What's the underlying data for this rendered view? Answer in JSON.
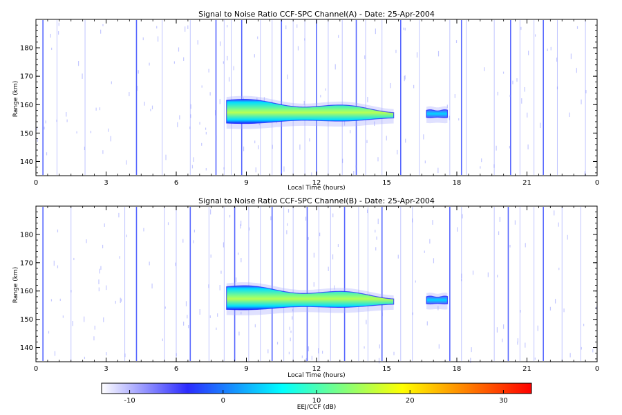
{
  "chart_data": [
    {
      "type": "heatmap",
      "title": "Signal to Noise Ratio CCF-SPC Channel(A) - Date: 25-Apr-2004",
      "xlabel": "Local Time (hours)",
      "ylabel": "Range (km)",
      "xlim": [
        0,
        24
      ],
      "ylim": [
        135,
        190
      ],
      "x_ticks": [
        "0",
        "3",
        "6",
        "9",
        "12",
        "15",
        "18",
        "21",
        "0"
      ],
      "y_ticks": [
        "140",
        "150",
        "160",
        "170",
        "180"
      ],
      "echo_regions": [
        {
          "t_start": 8.15,
          "t_end": 15.3,
          "range_bottom_start": 153.5,
          "range_top_start": 161.5,
          "range_bottom_end": 155.0,
          "range_top_end": 158.0,
          "peak_snr_db": 12
        },
        {
          "t_start": 16.7,
          "t_end": 17.6,
          "range_bottom_start": 155.5,
          "range_top_start": 158.0,
          "range_bottom_end": 155.5,
          "range_top_end": 158.0,
          "peak_snr_db": 2
        }
      ],
      "interference_times": [
        0.3,
        0.9,
        2.1,
        4.3,
        5.4,
        6.6,
        7.7,
        8.05,
        8.35,
        8.8,
        9.6,
        10.1,
        10.5,
        11.0,
        11.5,
        12.0,
        12.5,
        13.1,
        13.7,
        14.1,
        14.8,
        15.6,
        16.4,
        17.7,
        18.2,
        18.4,
        19.6,
        20.3,
        20.7,
        21.3,
        21.7,
        22.3,
        23.5
      ]
    },
    {
      "type": "heatmap",
      "title": "Signal to Noise Ratio CCF-SPC Channel(B) - Date: 25-Apr-2004",
      "xlabel": "Local Time (hours)",
      "ylabel": "Range (km)",
      "xlim": [
        0,
        24
      ],
      "ylim": [
        135,
        190
      ],
      "x_ticks": [
        "0",
        "3",
        "6",
        "9",
        "12",
        "15",
        "18",
        "21",
        "0"
      ],
      "y_ticks": [
        "140",
        "150",
        "160",
        "170",
        "180"
      ],
      "echo_regions": [
        {
          "t_start": 8.15,
          "t_end": 15.3,
          "range_bottom_start": 153.5,
          "range_top_start": 161.5,
          "range_bottom_end": 155.0,
          "range_top_end": 158.0,
          "peak_snr_db": 12
        },
        {
          "t_start": 16.7,
          "t_end": 17.6,
          "range_bottom_start": 155.5,
          "range_top_start": 158.0,
          "range_bottom_end": 155.5,
          "range_top_end": 158.0,
          "peak_snr_db": 2
        }
      ],
      "interference_times": [
        0.3,
        1.5,
        3.8,
        4.3,
        5.5,
        6.0,
        6.6,
        7.4,
        8.05,
        8.5,
        9.1,
        9.6,
        10.1,
        10.6,
        11.0,
        11.6,
        12.1,
        12.6,
        13.2,
        13.8,
        14.2,
        14.8,
        15.6,
        16.1,
        17.7,
        18.2,
        19.6,
        20.2,
        20.7,
        21.3,
        21.7,
        22.5,
        23.3
      ]
    }
  ],
  "colorbar": {
    "label": "EEJ/CCF (dB)",
    "ticks": [
      "-10",
      "0",
      "10",
      "20",
      "30"
    ],
    "tick_values": [
      -10,
      0,
      10,
      20,
      30
    ],
    "range": [
      -13,
      33
    ],
    "colors": [
      "#ffffff",
      "#2b2bff",
      "#00ffff",
      "#ffff00",
      "#ff0000"
    ]
  }
}
